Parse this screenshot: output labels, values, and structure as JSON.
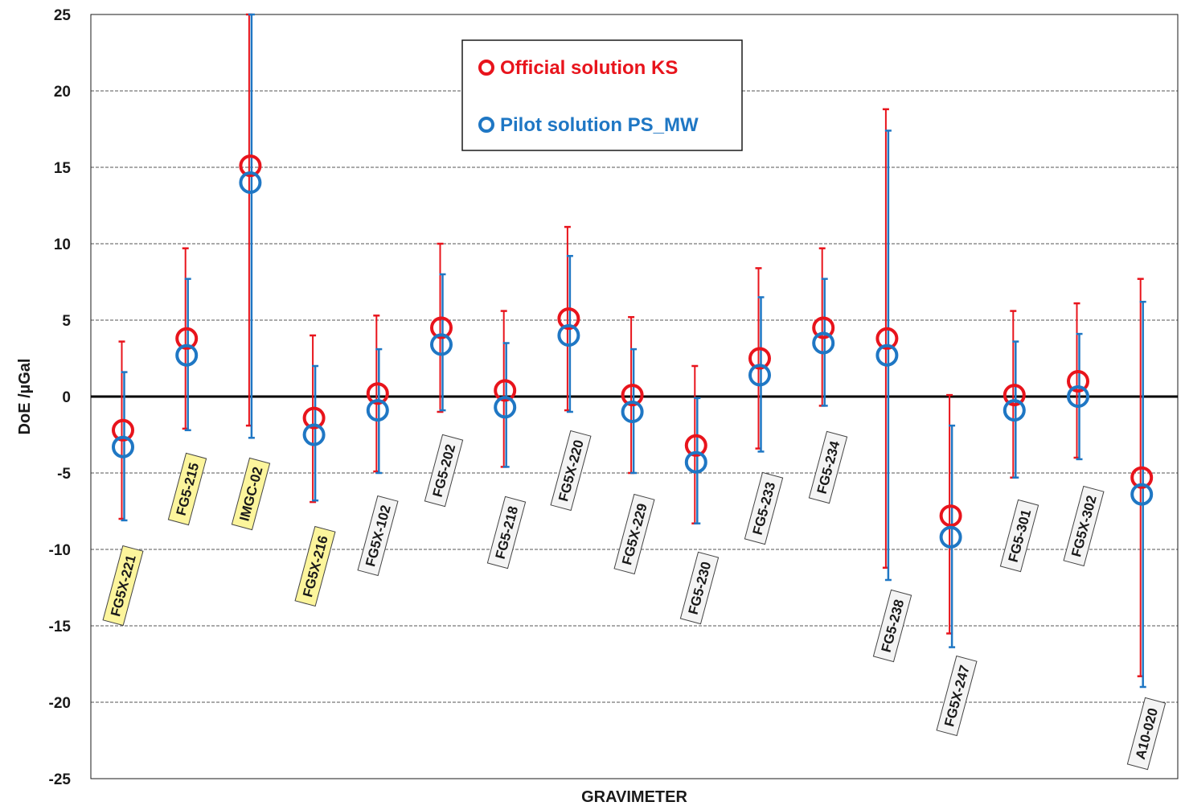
{
  "chart_data": {
    "type": "scatter",
    "title": "",
    "xlabel": "GRAVIMETER",
    "ylabel": "DoE /µGal",
    "ylim": [
      -25,
      25
    ],
    "yticks": [
      25,
      20,
      15,
      10,
      5,
      0,
      -5,
      -10,
      -15,
      -20,
      -25
    ],
    "grid": true,
    "legend_position": "top-center",
    "categories": [
      "FG5X-221",
      "FG5-215",
      "IMGC-02",
      "FG5X-216",
      "FG5X-102",
      "FG5-202",
      "FG5-218",
      "FG5X-220",
      "FG5X-229",
      "FG5-230",
      "FG5-233",
      "FG5-234",
      "FG5-238",
      "FG5X-247",
      "FG5-301",
      "FG5X-302",
      "A10-020"
    ],
    "highlighted": [
      true,
      true,
      true,
      true,
      false,
      false,
      false,
      false,
      false,
      false,
      false,
      false,
      false,
      false,
      false,
      false,
      false
    ],
    "series": [
      {
        "name": "Official solution KS",
        "color": "#e8141c",
        "values": [
          -2.2,
          3.8,
          15.1,
          -1.4,
          0.2,
          4.5,
          0.4,
          5.1,
          0.1,
          -3.2,
          2.5,
          4.5,
          3.8,
          -7.8,
          0.1,
          1.0,
          -5.3
        ],
        "error_high": [
          3.6,
          9.7,
          25.0,
          4.0,
          5.3,
          10.0,
          5.6,
          11.1,
          5.2,
          2.0,
          8.4,
          9.7,
          18.8,
          0.1,
          5.6,
          6.1,
          7.7
        ],
        "error_low": [
          -8.0,
          -2.1,
          -1.9,
          -6.9,
          -4.9,
          -1.0,
          -4.6,
          -0.9,
          -5.0,
          -8.3,
          -3.4,
          -0.6,
          -11.2,
          -15.5,
          -5.3,
          -4.0,
          -18.3
        ]
      },
      {
        "name": "Pilot solution PS_MW",
        "color": "#1f77c4",
        "values": [
          -3.3,
          2.7,
          14.0,
          -2.5,
          -0.9,
          3.4,
          -0.7,
          4.0,
          -1.0,
          -4.3,
          1.4,
          3.5,
          2.7,
          -9.2,
          -0.9,
          0.0,
          -6.4
        ],
        "error_high": [
          1.6,
          7.7,
          25.0,
          2.0,
          3.1,
          8.0,
          3.5,
          9.2,
          3.1,
          -0.1,
          6.5,
          7.7,
          17.4,
          -1.9,
          3.6,
          4.1,
          6.2
        ],
        "error_low": [
          -8.1,
          -2.2,
          -2.7,
          -6.8,
          -5.0,
          -0.9,
          -4.6,
          -1.0,
          -5.0,
          -8.3,
          -3.6,
          -0.6,
          -12.0,
          -16.4,
          -5.3,
          -4.1,
          -19.0
        ]
      }
    ]
  }
}
